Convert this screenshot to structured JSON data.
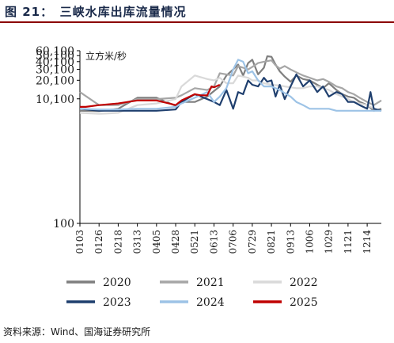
{
  "header": {
    "title": "图 21：　三峡水库出库流量情况"
  },
  "footer": {
    "source": "资料来源：Wind、国海证券研究所"
  },
  "chart_data": {
    "type": "line",
    "unit": "立方米/秒",
    "y_scale": "log",
    "ylim": [
      100,
      60100
    ],
    "yticks": [
      100,
      10100,
      20100,
      30100,
      40100,
      50100,
      60100
    ],
    "ytick_labels": [
      "100",
      "10,100",
      "20,100",
      "30,100",
      "40,100",
      "50,100",
      "60,100"
    ],
    "xlim": [
      "0103",
      "1231"
    ],
    "xticks": [
      "0103",
      "0126",
      "0218",
      "0313",
      "0405",
      "0428",
      "0521",
      "0613",
      "0706",
      "0729",
      "0821",
      "0913",
      "1006",
      "1029",
      "1121",
      "1214"
    ],
    "legend": {
      "position": "bottom",
      "columns": 3
    },
    "grid": false,
    "series": [
      {
        "name": "2020",
        "color": "#7f7f7f",
        "x": [
          "0103",
          "0126",
          "0218",
          "0313",
          "0405",
          "0428",
          "0505",
          "0521",
          "0605",
          "0613",
          "0620",
          "0628",
          "0706",
          "0712",
          "0718",
          "0724",
          "0729",
          "0805",
          "0812",
          "0816",
          "0821",
          "0826",
          "0831",
          "0906",
          "0913",
          "0920",
          "0928",
          "1006",
          "1015",
          "1022",
          "1029",
          "1107",
          "1114",
          "1121",
          "1128",
          "1205",
          "1214",
          "1222",
          "1231"
        ],
        "y": [
          6500,
          6400,
          7000,
          10500,
          10500,
          7800,
          9000,
          9000,
          11000,
          13500,
          16000,
          24000,
          30000,
          36000,
          24000,
          38000,
          43000,
          25000,
          32000,
          49000,
          48000,
          36000,
          28000,
          23000,
          19000,
          24000,
          21000,
          20000,
          17000,
          15000,
          18000,
          14000,
          12000,
          11000,
          10500,
          9000,
          8000,
          6500,
          7000
        ]
      },
      {
        "name": "2021",
        "color": "#a6a6a6",
        "x": [
          "0103",
          "0126",
          "0218",
          "0313",
          "0405",
          "0428",
          "0505",
          "0521",
          "0605",
          "0613",
          "0620",
          "0628",
          "0706",
          "0712",
          "0718",
          "0724",
          "0729",
          "0805",
          "0812",
          "0821",
          "0826",
          "0831",
          "0906",
          "0913",
          "0920",
          "0928",
          "1006",
          "1015",
          "1022",
          "1029",
          "1107",
          "1114",
          "1121",
          "1128",
          "1205",
          "1214",
          "1222",
          "1231"
        ],
        "y": [
          13000,
          8000,
          8000,
          10000,
          10000,
          10500,
          11500,
          15000,
          14000,
          16000,
          26000,
          25000,
          24000,
          34000,
          32000,
          30000,
          33000,
          38000,
          40000,
          42000,
          35000,
          31000,
          34000,
          30000,
          27000,
          24000,
          22000,
          20000,
          21000,
          19000,
          16000,
          15000,
          13000,
          12000,
          10500,
          9000,
          8000,
          9500
        ]
      },
      {
        "name": "2022",
        "color": "#d9d9d9",
        "x": [
          "0103",
          "0126",
          "0218",
          "0313",
          "0405",
          "0428",
          "0505",
          "0521",
          "0605",
          "0613",
          "0620",
          "0628",
          "0706",
          "0712",
          "0718",
          "0724",
          "0729",
          "0805",
          "0812",
          "0821",
          "0831",
          "0906",
          "0913",
          "0920",
          "0928",
          "1006",
          "1015",
          "1022",
          "1029",
          "1107",
          "1114",
          "1121",
          "1128",
          "1205",
          "1214",
          "1222",
          "1231"
        ],
        "y": [
          6000,
          5800,
          6000,
          8000,
          8500,
          10000,
          16000,
          24000,
          21000,
          20000,
          22000,
          18000,
          18000,
          24000,
          23000,
          22000,
          20000,
          20000,
          18000,
          17000,
          16500,
          16000,
          15500,
          15000,
          15000,
          16000,
          16000,
          15000,
          14000,
          12000,
          11000,
          10000,
          9000,
          8500,
          8000,
          7000,
          6500
        ]
      },
      {
        "name": "2023",
        "color": "#1f3f6e",
        "x": [
          "0103",
          "0126",
          "0218",
          "0313",
          "0405",
          "0428",
          "0505",
          "0521",
          "0605",
          "0613",
          "0620",
          "0628",
          "0706",
          "0712",
          "0718",
          "0724",
          "0729",
          "0805",
          "0812",
          "0816",
          "0821",
          "0826",
          "0831",
          "0906",
          "0913",
          "0920",
          "0928",
          "1006",
          "1015",
          "1022",
          "1029",
          "1107",
          "1114",
          "1121",
          "1128",
          "1205",
          "1214",
          "1218",
          "1222",
          "1231"
        ],
        "y": [
          7000,
          6500,
          6500,
          6500,
          6500,
          6800,
          9000,
          12000,
          10000,
          9000,
          8000,
          14000,
          7000,
          13000,
          12000,
          20000,
          17000,
          16000,
          22000,
          19000,
          20000,
          11000,
          17000,
          10000,
          16000,
          25000,
          16000,
          20000,
          13000,
          16000,
          11000,
          13000,
          12000,
          9000,
          9000,
          8000,
          7000,
          13000,
          7000,
          6500
        ]
      },
      {
        "name": "2024",
        "color": "#9dc3e6",
        "x": [
          "0103",
          "0126",
          "0218",
          "0313",
          "0405",
          "0428",
          "0505",
          "0521",
          "0605",
          "0613",
          "0620",
          "0628",
          "0706",
          "0712",
          "0718",
          "0724",
          "0729",
          "0805",
          "0812",
          "0821",
          "0831",
          "0906",
          "0913",
          "0920",
          "0928",
          "1006",
          "1015",
          "1022",
          "1029",
          "1107",
          "1121",
          "1205",
          "1214",
          "1222",
          "1231"
        ],
        "y": [
          7000,
          6800,
          6800,
          7000,
          7000,
          7500,
          8500,
          10500,
          13000,
          9000,
          11000,
          15000,
          30000,
          43000,
          40000,
          26000,
          28000,
          20000,
          16000,
          16000,
          14000,
          12500,
          11000,
          9000,
          8000,
          7000,
          7000,
          7000,
          7000,
          6500,
          6500,
          6500,
          6500,
          6500,
          6500
        ]
      },
      {
        "name": "2025",
        "color": "#c00000",
        "x": [
          "0103",
          "0110",
          "0126",
          "0218",
          "0313",
          "0405",
          "0420",
          "0428",
          "0505",
          "0515",
          "0521",
          "0528",
          "0605",
          "0610",
          "0613",
          "0620"
        ],
        "y": [
          7500,
          7500,
          8000,
          8500,
          9500,
          9500,
          8500,
          8000,
          9500,
          11000,
          12000,
          11500,
          11500,
          16000,
          15500,
          17000
        ]
      }
    ]
  }
}
